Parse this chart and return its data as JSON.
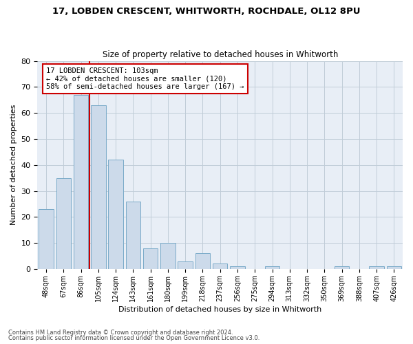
{
  "title": "17, LOBDEN CRESCENT, WHITWORTH, ROCHDALE, OL12 8PU",
  "subtitle": "Size of property relative to detached houses in Whitworth",
  "xlabel": "Distribution of detached houses by size in Whitworth",
  "ylabel": "Number of detached properties",
  "bar_color": "#ccdaea",
  "bar_edge_color": "#7aaac8",
  "categories": [
    "48sqm",
    "67sqm",
    "86sqm",
    "105sqm",
    "124sqm",
    "143sqm",
    "161sqm",
    "180sqm",
    "199sqm",
    "218sqm",
    "237sqm",
    "256sqm",
    "275sqm",
    "294sqm",
    "313sqm",
    "332sqm",
    "350sqm",
    "369sqm",
    "388sqm",
    "407sqm",
    "426sqm"
  ],
  "values": [
    23,
    35,
    67,
    63,
    42,
    26,
    8,
    10,
    3,
    6,
    2,
    1,
    0,
    1,
    0,
    0,
    0,
    1,
    0,
    1,
    1
  ],
  "ylim": [
    0,
    80
  ],
  "yticks": [
    0,
    10,
    20,
    30,
    40,
    50,
    60,
    70,
    80
  ],
  "property_label": "17 LOBDEN CRESCENT: 103sqm",
  "annotation_line1": "← 42% of detached houses are smaller (120)",
  "annotation_line2": "58% of semi-detached houses are larger (167) →",
  "vline_x": 2.5,
  "vline_color": "#cc0000",
  "annotation_box_color": "#ffffff",
  "annotation_box_edge": "#cc0000",
  "grid_color": "#c0ccd8",
  "background_color": "#e8eef6",
  "footer_line1": "Contains HM Land Registry data © Crown copyright and database right 2024.",
  "footer_line2": "Contains public sector information licensed under the Open Government Licence v3.0."
}
